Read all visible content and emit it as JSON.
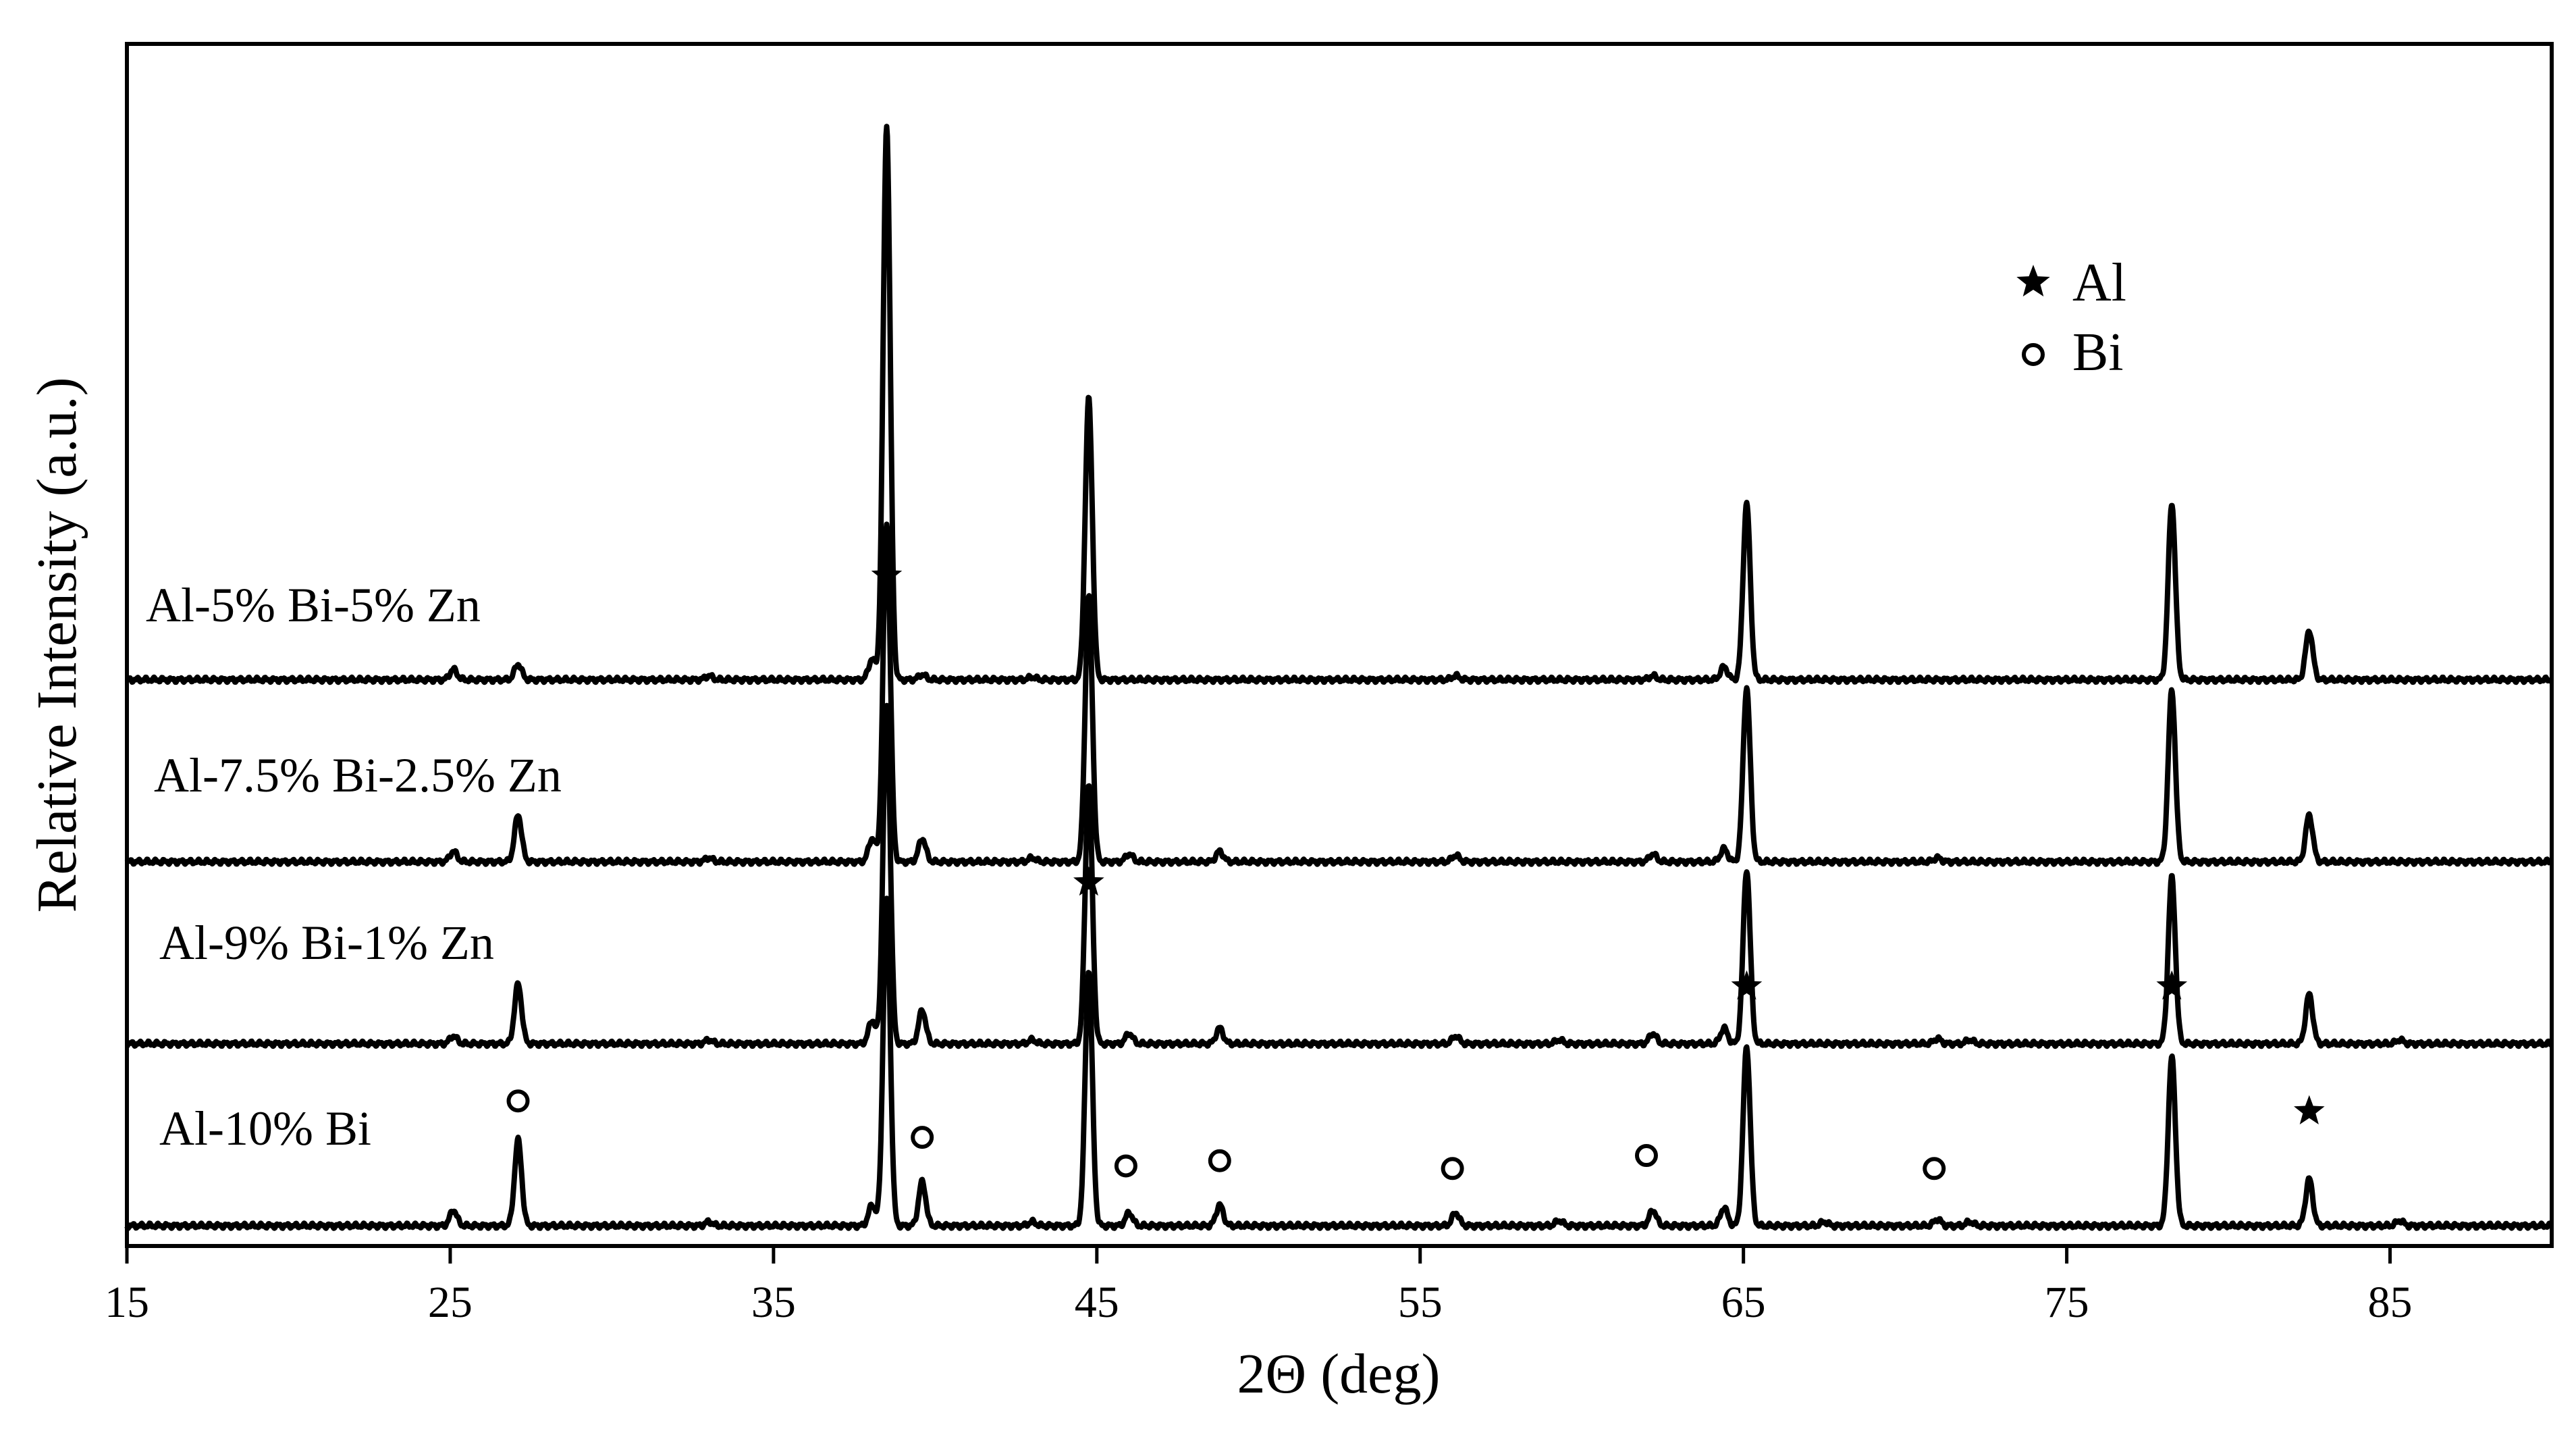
{
  "chart_data": {
    "type": "line",
    "title": "",
    "xlabel": "2Θ (deg)",
    "ylabel": "Relative Intensity (a.u.)",
    "xlim": [
      15,
      90
    ],
    "xticks": [
      15,
      25,
      35,
      45,
      55,
      65,
      75,
      85
    ],
    "yticks": [],
    "grid": false,
    "line_color": "#000000",
    "legend": {
      "placement": "top-right",
      "entries": [
        {
          "marker": "star-icon",
          "label": "Al"
        },
        {
          "marker": "open-circle-icon",
          "label": "Bi"
        }
      ]
    },
    "series": [
      {
        "name": "Al-10% Bi",
        "baseline": 0,
        "peaks": [
          [
            25.1,
            0.06
          ],
          [
            27.1,
            0.33
          ],
          [
            33,
            0.015
          ],
          [
            38.05,
            0.08
          ],
          [
            38.5,
            1.25
          ],
          [
            39.6,
            0.17
          ],
          [
            43,
            0.015
          ],
          [
            44.75,
            0.98
          ],
          [
            46,
            0.05
          ],
          [
            48.8,
            0.08
          ],
          [
            56.1,
            0.05
          ],
          [
            59.3,
            0.02
          ],
          [
            62.2,
            0.06
          ],
          [
            64.4,
            0.07
          ],
          [
            65.1,
            0.69
          ],
          [
            67.5,
            0.015
          ],
          [
            71,
            0.025
          ],
          [
            72,
            0.015
          ],
          [
            78.25,
            0.65
          ],
          [
            82.5,
            0.18
          ],
          [
            85.3,
            0.02
          ]
        ]
      },
      {
        "name": "Al-9% Bi-1% Zn",
        "baseline": 0.7,
        "peaks": [
          [
            25.1,
            0.03
          ],
          [
            27.1,
            0.23
          ],
          [
            33,
            0.015
          ],
          [
            38.05,
            0.09
          ],
          [
            38.5,
            1.3
          ],
          [
            39.6,
            0.13
          ],
          [
            43,
            0.015
          ],
          [
            44.75,
            1.0
          ],
          [
            46,
            0.04
          ],
          [
            48.8,
            0.06
          ],
          [
            56.1,
            0.03
          ],
          [
            59.3,
            0.015
          ],
          [
            62.2,
            0.04
          ],
          [
            64.4,
            0.06
          ],
          [
            65.1,
            0.67
          ],
          [
            71,
            0.02
          ],
          [
            72,
            0.015
          ],
          [
            78.25,
            0.64
          ],
          [
            82.5,
            0.19
          ],
          [
            85.3,
            0.015
          ]
        ]
      },
      {
        "name": "Al-7.5% Bi-2.5% Zn",
        "baseline": 1.4,
        "peaks": [
          [
            25.1,
            0.04
          ],
          [
            27.1,
            0.18
          ],
          [
            33,
            0.015
          ],
          [
            38.05,
            0.09
          ],
          [
            38.5,
            1.3
          ],
          [
            39.6,
            0.09
          ],
          [
            43,
            0.015
          ],
          [
            44.75,
            1.02
          ],
          [
            46,
            0.03
          ],
          [
            48.8,
            0.04
          ],
          [
            56.1,
            0.025
          ],
          [
            62.2,
            0.03
          ],
          [
            64.4,
            0.05
          ],
          [
            65.1,
            0.67
          ],
          [
            71,
            0.015
          ],
          [
            78.25,
            0.66
          ],
          [
            82.5,
            0.18
          ]
        ]
      },
      {
        "name": "Al-5% Bi-5% Zn",
        "baseline": 2.1,
        "peaks": [
          [
            25.1,
            0.04
          ],
          [
            27.1,
            0.06
          ],
          [
            33,
            0.015
          ],
          [
            38.05,
            0.08
          ],
          [
            38.5,
            2.13
          ],
          [
            39.6,
            0.02
          ],
          [
            43,
            0.01
          ],
          [
            44.75,
            1.08
          ],
          [
            56.1,
            0.015
          ],
          [
            62.2,
            0.015
          ],
          [
            64.4,
            0.05
          ],
          [
            65.1,
            0.68
          ],
          [
            78.25,
            0.68
          ],
          [
            82.5,
            0.19
          ]
        ]
      }
    ],
    "annotations": {
      "al_stars": [
        [
          38.5,
          2.5
        ],
        [
          44.75,
          1.32
        ],
        [
          65.1,
          0.92
        ],
        [
          78.25,
          0.92
        ],
        [
          82.5,
          0.44
        ]
      ],
      "bi_circles": [
        [
          27.1,
          0.48
        ],
        [
          39.6,
          0.34
        ],
        [
          45.9,
          0.23
        ],
        [
          48.8,
          0.25
        ],
        [
          56,
          0.22
        ],
        [
          62,
          0.27
        ],
        [
          70.9,
          0.22
        ]
      ]
    }
  }
}
